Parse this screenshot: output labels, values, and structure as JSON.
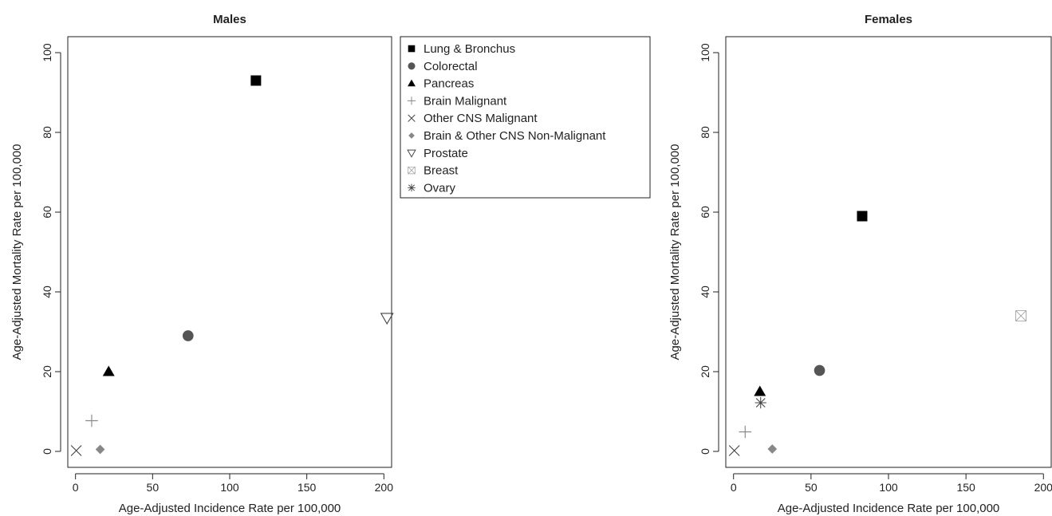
{
  "chart_data": [
    {
      "type": "scatter",
      "title": "Males",
      "xlabel": "Age-Adjusted Incidence Rate per 100,000",
      "ylabel": "Age-Adjusted Mortality Rate per 100,000",
      "xlim": [
        -5,
        205
      ],
      "ylim": [
        -4,
        104
      ],
      "xticks": [
        0,
        50,
        100,
        150,
        200
      ],
      "yticks": [
        0,
        20,
        40,
        60,
        80,
        100
      ],
      "series": [
        {
          "name": "Lung & Bronchus",
          "x": 117,
          "y": 93
        },
        {
          "name": "Colorectal",
          "x": 73,
          "y": 29
        },
        {
          "name": "Pancreas",
          "x": 21.5,
          "y": 20
        },
        {
          "name": "Brain Malignant",
          "x": 10.5,
          "y": 7.7
        },
        {
          "name": "Other CNS Malignant",
          "x": 0.5,
          "y": 0.2
        },
        {
          "name": "Brain & Other CNS Non-Malignant",
          "x": 16,
          "y": 0.5
        },
        {
          "name": "Prostate",
          "x": 202,
          "y": 33.5
        }
      ]
    },
    {
      "type": "scatter",
      "title": "Females",
      "xlabel": "Age-Adjusted Incidence Rate per 100,000",
      "ylabel": "Age-Adjusted Mortality Rate per 100,000",
      "xlim": [
        -5,
        205
      ],
      "ylim": [
        -4,
        104
      ],
      "xticks": [
        0,
        50,
        100,
        150,
        200
      ],
      "yticks": [
        0,
        20,
        40,
        60,
        80,
        100
      ],
      "series": [
        {
          "name": "Lung & Bronchus",
          "x": 83,
          "y": 59
        },
        {
          "name": "Colorectal",
          "x": 55.5,
          "y": 20.3
        },
        {
          "name": "Pancreas",
          "x": 17,
          "y": 15
        },
        {
          "name": "Brain Malignant",
          "x": 7.5,
          "y": 4.9
        },
        {
          "name": "Other CNS Malignant",
          "x": 0.5,
          "y": 0.2
        },
        {
          "name": "Brain & Other CNS Non-Malignant",
          "x": 25,
          "y": 0.6
        },
        {
          "name": "Breast",
          "x": 185.5,
          "y": 34
        },
        {
          "name": "Ovary",
          "x": 17.5,
          "y": 12.2
        }
      ]
    }
  ],
  "legend": {
    "placement": "between-panels",
    "items": [
      {
        "label": "Lung & Bronchus",
        "symbol": "filled-square",
        "color": "#000000"
      },
      {
        "label": "Colorectal",
        "symbol": "filled-circle",
        "color": "#555555"
      },
      {
        "label": "Pancreas",
        "symbol": "filled-triangle",
        "color": "#000000"
      },
      {
        "label": "Brain Malignant",
        "symbol": "plus",
        "color": "#888888"
      },
      {
        "label": "Other CNS Malignant",
        "symbol": "cross",
        "color": "#444444"
      },
      {
        "label": "Brain & Other CNS Non-Malignant",
        "symbol": "filled-diamond",
        "color": "#888888"
      },
      {
        "label": "Prostate",
        "symbol": "open-triangle-down",
        "color": "#444444"
      },
      {
        "label": "Breast",
        "symbol": "crossed-square",
        "color": "#9a9a9a"
      },
      {
        "label": "Ovary",
        "symbol": "asterisk",
        "color": "#444444"
      }
    ]
  }
}
